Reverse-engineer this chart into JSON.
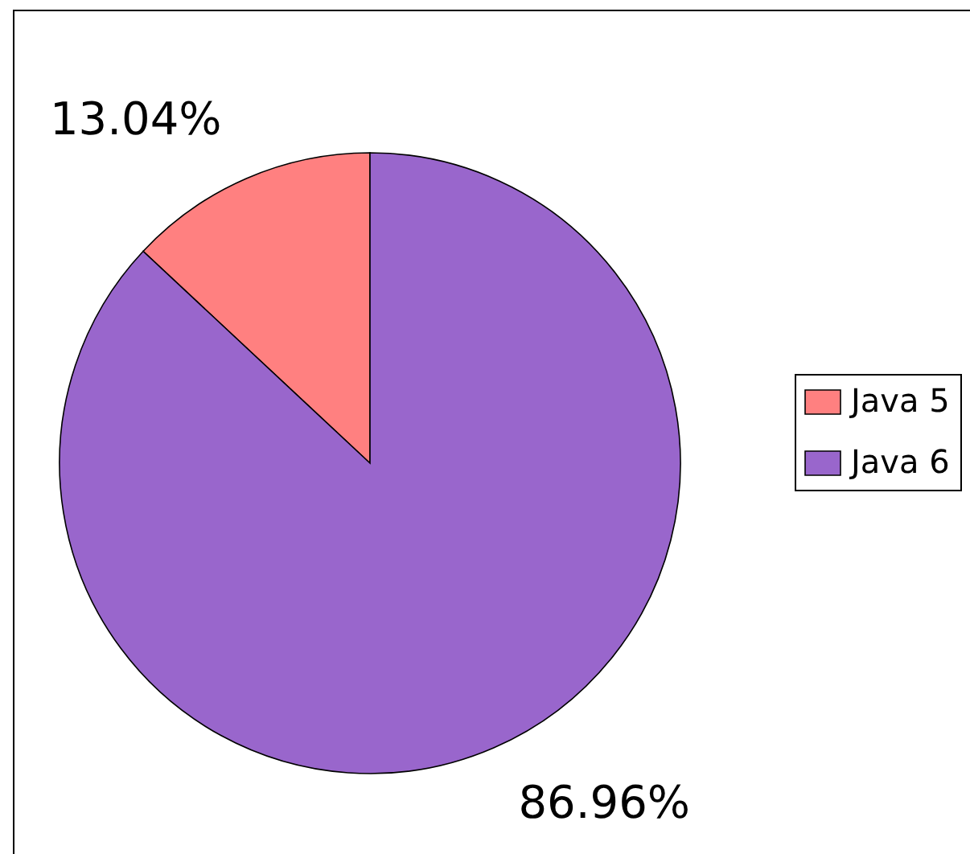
{
  "chart_data": {
    "type": "pie",
    "categories": [
      "Java 5",
      "Java 6"
    ],
    "values": [
      13.04,
      86.96
    ],
    "colors": [
      "#ff8080",
      "#9966cc"
    ],
    "value_labels": [
      "13.04%",
      "86.96%"
    ],
    "legend": "right"
  }
}
